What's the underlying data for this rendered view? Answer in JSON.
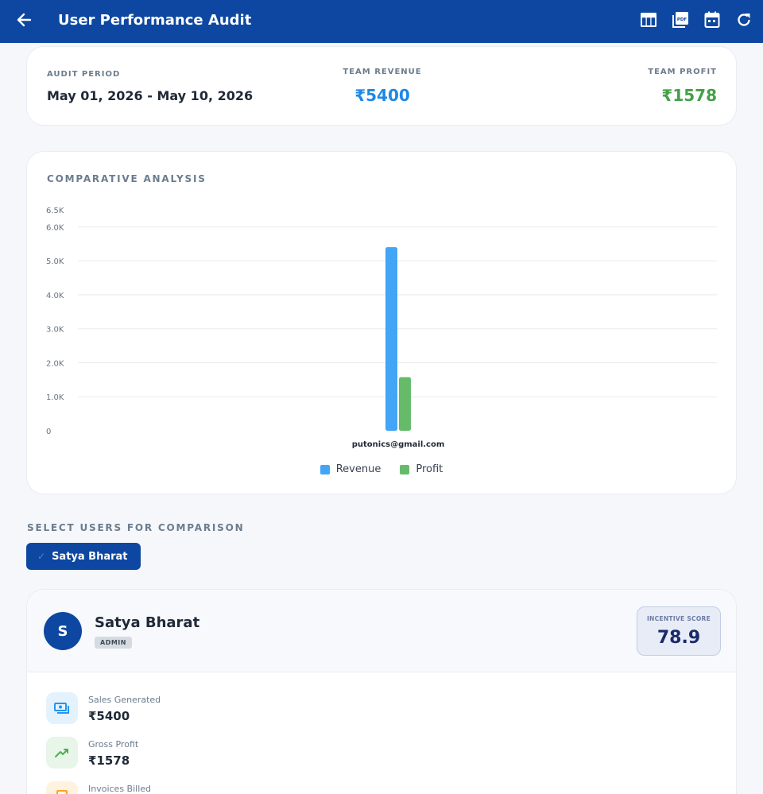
{
  "app": {
    "title": "User Performance Audit"
  },
  "icons": {
    "back": "arrow-back-icon",
    "actions": [
      "table-icon",
      "pdf-icon",
      "calendar-icon",
      "refresh-icon"
    ]
  },
  "summary": {
    "period_label": "AUDIT PERIOD",
    "period_value": "May 01, 2026 - May 10, 2026",
    "revenue_label": "TEAM REVENUE",
    "revenue_value": "₹5400",
    "profit_label": "TEAM PROFIT",
    "profit_value": "₹1578"
  },
  "colors": {
    "brand": "#0d47a1",
    "revenue": "#42a5f5",
    "profit": "#66bb6a"
  },
  "chart_section_title": "COMPARATIVE ANALYSIS",
  "chart_data": {
    "type": "bar",
    "categories": [
      "putonics@gmail.com"
    ],
    "series": [
      {
        "name": "Revenue",
        "values": [
          5400
        ],
        "color": "#42a5f5"
      },
      {
        "name": "Profit",
        "values": [
          1578
        ],
        "color": "#66bb6a"
      }
    ],
    "ylim": [
      0,
      6500
    ],
    "yticks": [
      {
        "value": 0,
        "label": "0"
      },
      {
        "value": 1000,
        "label": "1.0K"
      },
      {
        "value": 2000,
        "label": "2.0K"
      },
      {
        "value": 3000,
        "label": "3.0K"
      },
      {
        "value": 4000,
        "label": "4.0K"
      },
      {
        "value": 5000,
        "label": "5.0K"
      },
      {
        "value": 6000,
        "label": "6.0K"
      },
      {
        "value": 6500,
        "label": "6.5K"
      }
    ],
    "grid": true,
    "legend": "bottom-center"
  },
  "selection": {
    "title": "SELECT USERS FOR COMPARISON",
    "chip_check": "✓",
    "chip_label": "Satya Bharat"
  },
  "user": {
    "initial": "S",
    "name": "Satya Bharat",
    "role": "ADMIN",
    "score_label": "INCENTIVE SCORE",
    "score_value": "78.9",
    "stats": [
      {
        "label": "Sales Generated",
        "value": "₹5400",
        "icon": "cash-icon",
        "color": "#2196f3",
        "bg": "#e3f2fd"
      },
      {
        "label": "Gross Profit",
        "value": "₹1578",
        "icon": "trending-up-icon",
        "color": "#4caf50",
        "bg": "#e8f5e9"
      },
      {
        "label": "Invoices Billed",
        "value": "",
        "icon": "receipt-icon",
        "color": "#f5a623",
        "bg": "#fff3e0"
      }
    ]
  }
}
